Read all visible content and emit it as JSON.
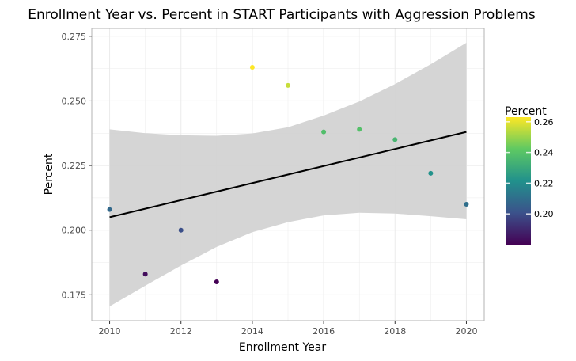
{
  "chart_data": {
    "type": "scatter",
    "title": "Enrollment Year vs. Percent in START Participants with Aggression Problems",
    "xlabel": "Enrollment Year",
    "ylabel": "Percent",
    "xlim": [
      2009.5,
      2020.5
    ],
    "ylim": [
      0.165,
      0.278
    ],
    "x_ticks": [
      2010,
      2012,
      2014,
      2016,
      2018,
      2020
    ],
    "y_ticks": [
      0.175,
      0.2,
      0.225,
      0.25,
      0.275
    ],
    "y_tick_labels": [
      "0.175",
      "0.200",
      "0.225",
      "0.250",
      "0.275"
    ],
    "grid": true,
    "points": [
      {
        "x": 2010,
        "y": 0.208
      },
      {
        "x": 2011,
        "y": 0.183
      },
      {
        "x": 2012,
        "y": 0.2
      },
      {
        "x": 2013,
        "y": 0.18
      },
      {
        "x": 2014,
        "y": 0.263
      },
      {
        "x": 2015,
        "y": 0.256
      },
      {
        "x": 2016,
        "y": 0.238
      },
      {
        "x": 2017,
        "y": 0.239
      },
      {
        "x": 2018,
        "y": 0.235
      },
      {
        "x": 2019,
        "y": 0.222
      },
      {
        "x": 2020,
        "y": 0.21
      }
    ],
    "trend_line": {
      "x": [
        2010,
        2020
      ],
      "y": [
        0.205,
        0.238
      ]
    },
    "confidence_band": {
      "x": [
        2010,
        2011,
        2012,
        2013,
        2014,
        2015,
        2016,
        2017,
        2018,
        2019,
        2020
      ],
      "upper": [
        0.239,
        0.2375,
        0.2367,
        0.2365,
        0.2374,
        0.2398,
        0.2443,
        0.2498,
        0.2565,
        0.2642,
        0.2725
      ],
      "lower": [
        0.1705,
        0.1785,
        0.1863,
        0.1935,
        0.1992,
        0.2031,
        0.2057,
        0.2067,
        0.2064,
        0.2054,
        0.2042
      ]
    },
    "colorbar": {
      "title": "Percent",
      "range": [
        0.18,
        0.263
      ],
      "ticks": [
        0.2,
        0.22,
        0.24,
        0.26
      ],
      "tick_labels": [
        "0.20",
        "0.22",
        "0.24",
        "0.26"
      ],
      "placement": "right",
      "colormap": [
        "#440154",
        "#3b528b",
        "#21918c",
        "#5ec962",
        "#fde725"
      ]
    },
    "colors": {
      "trend_line": "#000000",
      "band": "#d3d3d3",
      "grid": "#ebebeb",
      "panel_border": "#b3b3b3"
    }
  }
}
